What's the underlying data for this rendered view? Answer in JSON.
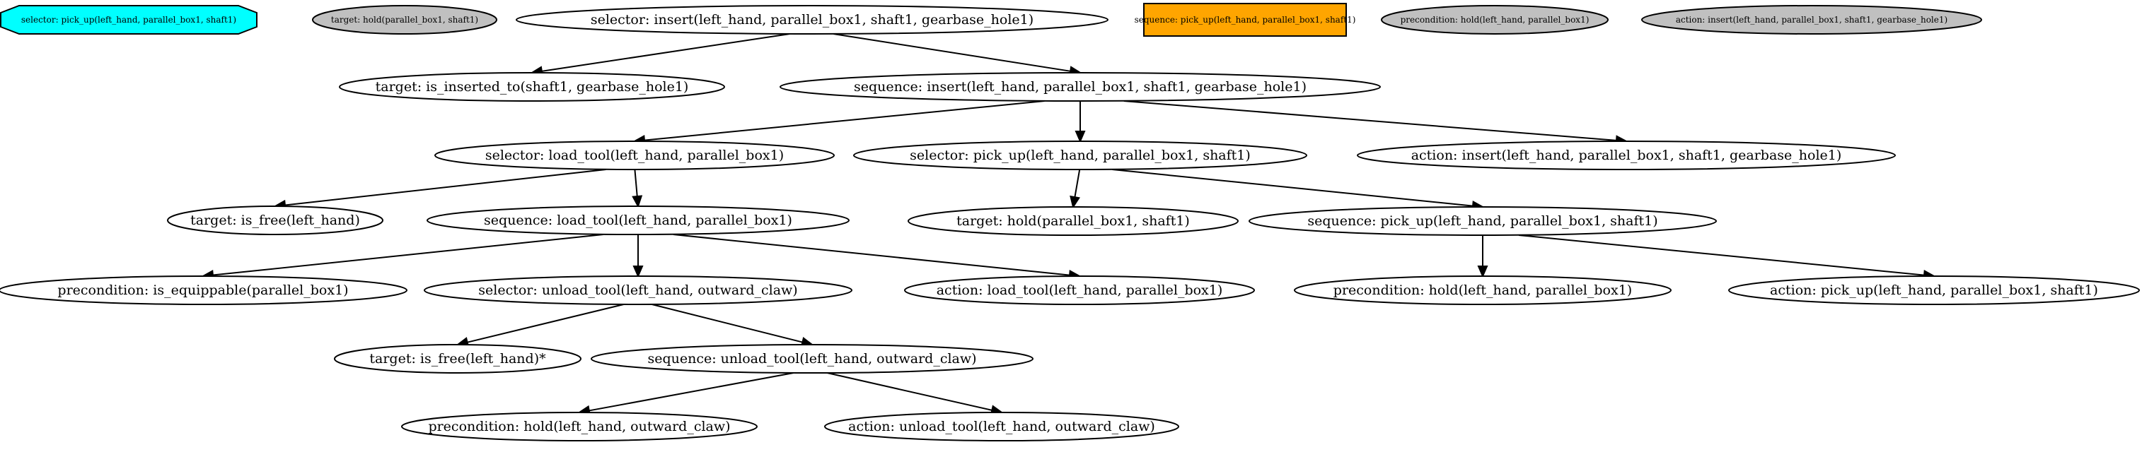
{
  "colors": {
    "default_fill": "#ffffff",
    "cyan": "#00ffff",
    "gray": "#c0c0c0",
    "orange": "#ffa500",
    "stroke": "#000000"
  },
  "legend": [
    {
      "id": "lg_selector",
      "label": "selector: pick_up(left_hand, parallel_box1, shaft1)",
      "shape": "octagon",
      "fill": "cyan"
    },
    {
      "id": "lg_target",
      "label": "target: hold(parallel_box1, shaft1)",
      "shape": "ellipse",
      "fill": "gray"
    },
    {
      "id": "lg_sequence",
      "label": "sequence: pick_up(left_hand, parallel_box1, shaft1)",
      "shape": "box",
      "fill": "orange"
    },
    {
      "id": "lg_precondition",
      "label": "precondition: hold(left_hand, parallel_box1)",
      "shape": "ellipse",
      "fill": "gray"
    },
    {
      "id": "lg_action",
      "label": "action: insert(left_hand, parallel_box1, shaft1, gearbase_hole1)",
      "shape": "ellipse",
      "fill": "gray"
    }
  ],
  "nodes": [
    {
      "id": "n1",
      "label": "selector: insert(left_hand, parallel_box1, shaft1, gearbase_hole1)"
    },
    {
      "id": "n2",
      "label": "target: is_inserted_to(shaft1, gearbase_hole1)"
    },
    {
      "id": "n3",
      "label": "sequence: insert(left_hand, parallel_box1, shaft1, gearbase_hole1)"
    },
    {
      "id": "n4",
      "label": "selector: load_tool(left_hand, parallel_box1)"
    },
    {
      "id": "n5",
      "label": "selector: pick_up(left_hand, parallel_box1, shaft1)"
    },
    {
      "id": "n6",
      "label": "action: insert(left_hand, parallel_box1, shaft1, gearbase_hole1)"
    },
    {
      "id": "n7",
      "label": "target: is_free(left_hand)"
    },
    {
      "id": "n8",
      "label": "sequence: load_tool(left_hand, parallel_box1)"
    },
    {
      "id": "n9",
      "label": "target: hold(parallel_box1, shaft1)"
    },
    {
      "id": "n10",
      "label": "sequence: pick_up(left_hand, parallel_box1, shaft1)"
    },
    {
      "id": "n11",
      "label": "precondition: is_equippable(parallel_box1)"
    },
    {
      "id": "n12",
      "label": "selector: unload_tool(left_hand, outward_claw)"
    },
    {
      "id": "n13",
      "label": "action: load_tool(left_hand, parallel_box1)"
    },
    {
      "id": "n14",
      "label": "precondition: hold(left_hand, parallel_box1)"
    },
    {
      "id": "n15",
      "label": "action: pick_up(left_hand, parallel_box1, shaft1)"
    },
    {
      "id": "n16",
      "label": "target: is_free(left_hand)*"
    },
    {
      "id": "n17",
      "label": "sequence: unload_tool(left_hand, outward_claw)"
    },
    {
      "id": "n18",
      "label": "precondition: hold(left_hand, outward_claw)"
    },
    {
      "id": "n19",
      "label": "action: unload_tool(left_hand, outward_claw)"
    }
  ],
  "edges": [
    [
      "n1",
      "n2"
    ],
    [
      "n1",
      "n3"
    ],
    [
      "n3",
      "n4"
    ],
    [
      "n3",
      "n5"
    ],
    [
      "n3",
      "n6"
    ],
    [
      "n4",
      "n7"
    ],
    [
      "n4",
      "n8"
    ],
    [
      "n5",
      "n9"
    ],
    [
      "n5",
      "n10"
    ],
    [
      "n8",
      "n11"
    ],
    [
      "n8",
      "n12"
    ],
    [
      "n8",
      "n13"
    ],
    [
      "n10",
      "n14"
    ],
    [
      "n10",
      "n15"
    ],
    [
      "n12",
      "n16"
    ],
    [
      "n12",
      "n17"
    ],
    [
      "n17",
      "n18"
    ],
    [
      "n17",
      "n19"
    ]
  ]
}
